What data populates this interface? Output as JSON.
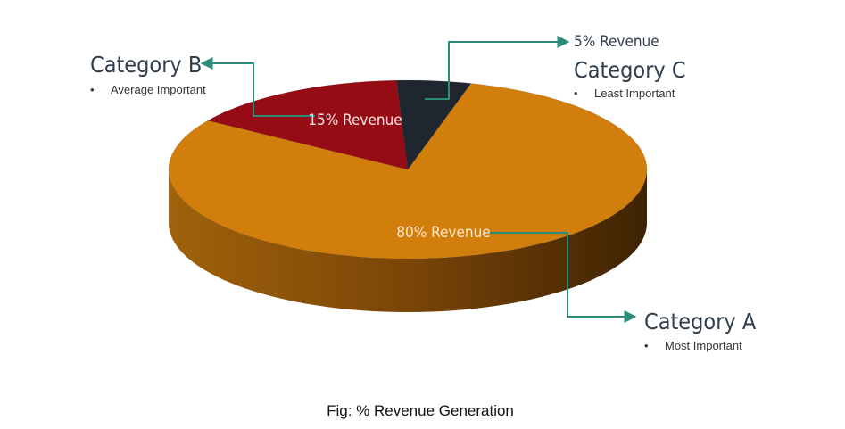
{
  "chart_data": {
    "type": "pie",
    "slices": [
      {
        "label": "80% Revenue",
        "value": 80,
        "color": "#D27E0C",
        "side_color": "#8A4F06"
      },
      {
        "label": "15% Revenue",
        "value": 15,
        "color": "#960C14",
        "side_color": "#5E070C"
      },
      {
        "label": "5% Revenue",
        "value": 5,
        "color": "#1F2630",
        "side_color": "#12171D"
      }
    ],
    "categories": [
      {
        "name": "Category A",
        "bullet": "Most Important"
      },
      {
        "name": "Category B",
        "bullet": "Average Important"
      },
      {
        "name": "Category C",
        "bullet": "Least Important"
      }
    ],
    "caption": "Fig: % Revenue Generation",
    "style": "3d",
    "connector_color": "#2E8B7A"
  }
}
